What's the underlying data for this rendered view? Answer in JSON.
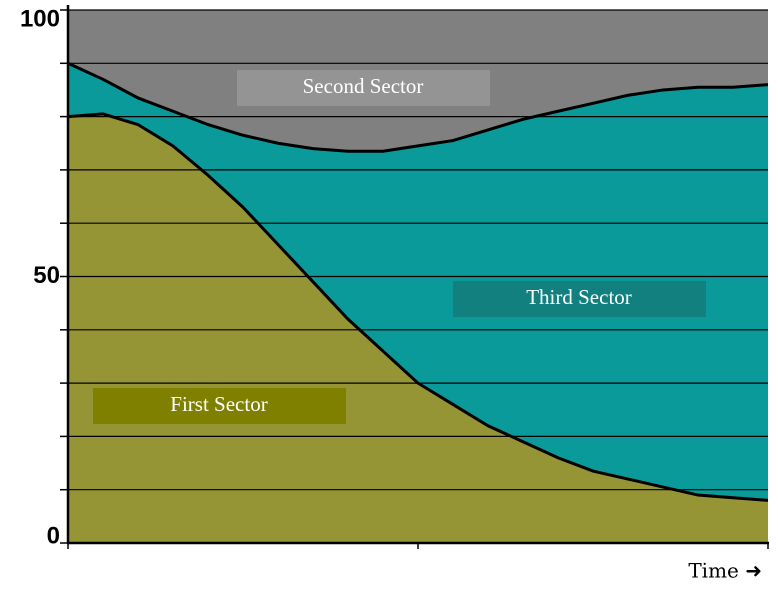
{
  "chart_data": {
    "type": "stacked_area",
    "x": [
      0,
      1,
      2,
      3,
      4,
      5,
      6,
      7,
      8,
      9,
      10,
      11,
      12,
      13,
      14,
      15,
      16,
      17,
      18,
      19,
      20
    ],
    "xlim": [
      0,
      20
    ],
    "ylim": [
      0,
      100
    ],
    "yticks": [
      0,
      50,
      100
    ],
    "minor_yticks": [
      10,
      20,
      30,
      40,
      60,
      70,
      80,
      90
    ],
    "grid": true,
    "x_label": "Time ➜",
    "series": [
      {
        "name": "First Sector",
        "color": "#959535",
        "label_color": "#808000",
        "values": [
          80,
          80.5,
          78.5,
          74.5,
          69,
          63,
          56,
          49,
          42,
          36,
          30,
          26,
          22,
          19,
          16,
          13.5,
          12,
          10.5,
          9,
          8.5,
          8
        ]
      },
      {
        "name": "Third Sector",
        "color": "#0a9a9a",
        "label_color": "#12807f",
        "values": [
          10,
          6.5,
          5,
          6.5,
          9.5,
          13.5,
          19,
          25,
          31.5,
          37.5,
          44.5,
          49.5,
          55.5,
          60.5,
          65,
          69,
          72,
          74.5,
          76.5,
          77,
          78
        ]
      },
      {
        "name": "Second Sector",
        "color": "#808080",
        "label_color": "#949494",
        "values": [
          10,
          13,
          16.5,
          19,
          21.5,
          23.5,
          25,
          26,
          26.5,
          26.5,
          25.5,
          24.5,
          22.5,
          20.5,
          19,
          17.5,
          16,
          15,
          14.5,
          14.5,
          14
        ]
      }
    ]
  }
}
